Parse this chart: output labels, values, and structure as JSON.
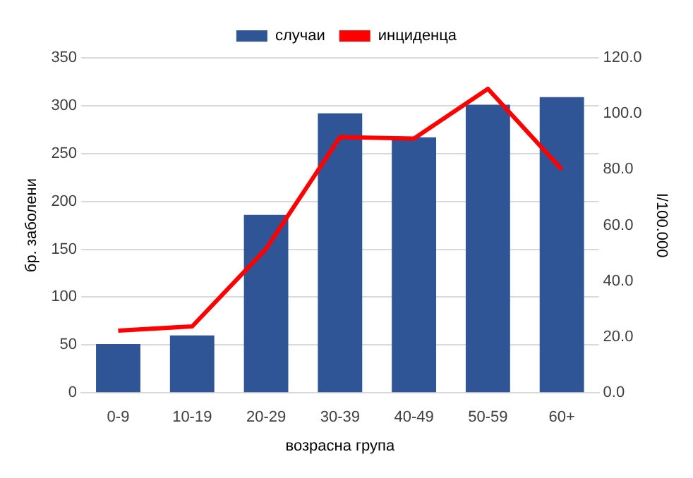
{
  "chart_data": {
    "type": "bar",
    "xlabel": "возрасна група",
    "ylabel": "бр. заболени",
    "y2label": "I/100.000",
    "categories": [
      "0-9",
      "10-19",
      "20-29",
      "30-39",
      "40-49",
      "50-59",
      "60+"
    ],
    "series": [
      {
        "name": "случаи",
        "color": "#2f5597",
        "values": [
          51,
          60,
          186,
          292,
          267,
          301,
          309
        ]
      },
      {
        "name": "инциденца",
        "type": "line",
        "axis": "y2",
        "color": "#ff0000",
        "values": [
          22.3,
          23.8,
          51.6,
          91.6,
          91.1,
          108.9,
          80
        ]
      }
    ],
    "ylim": [
      0,
      350
    ],
    "yticks": [
      0,
      50,
      100,
      150,
      200,
      250,
      300,
      350
    ],
    "y2lim": [
      0,
      120
    ],
    "y2ticks": [
      {
        "value": 0,
        "label": "0.0"
      },
      {
        "value": 20,
        "label": "20.0"
      },
      {
        "value": 40,
        "label": "40.0"
      },
      {
        "value": 60,
        "label": "60.0"
      },
      {
        "value": 80,
        "label": "80.0"
      },
      {
        "value": 100,
        "label": "100.0"
      },
      {
        "value": 120,
        "label": "120.0"
      }
    ],
    "grid": "y",
    "legend": "top",
    "marker": "none"
  }
}
